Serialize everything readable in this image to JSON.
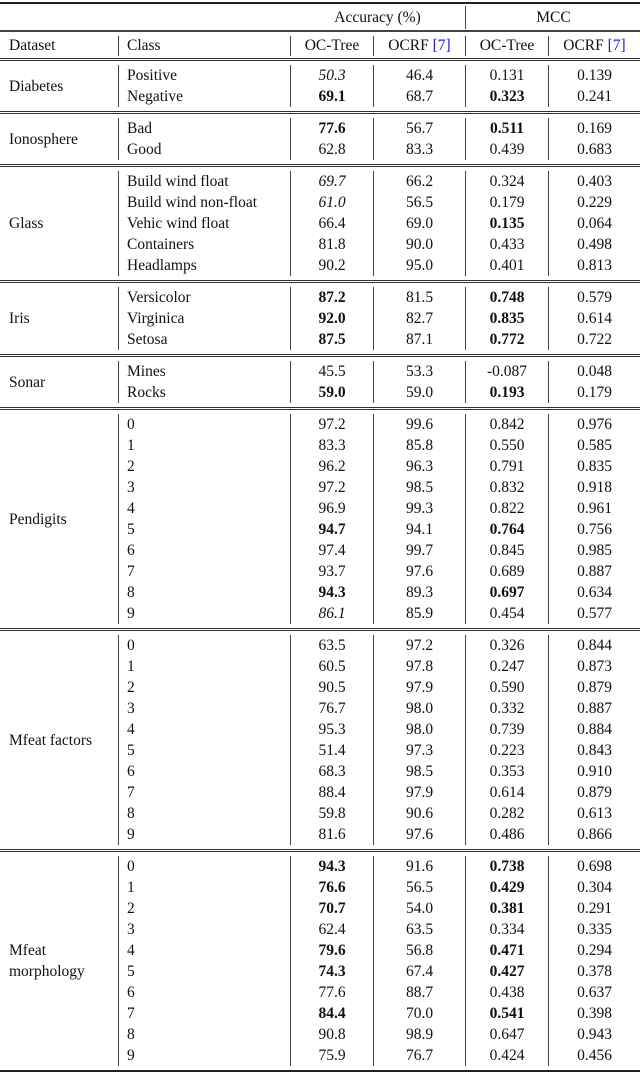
{
  "header": {
    "group_accuracy": "Accuracy (%)",
    "group_mcc": "MCC",
    "col_dataset": "Dataset",
    "col_class": "Class",
    "col_oc_tree": "OC-Tree",
    "col_ocrf": "OCRF",
    "ocrf_ref": "[7]",
    "ref_color": "#1a1aee"
  },
  "groups": [
    {
      "dataset": "Diabetes",
      "rows": [
        {
          "cls": "Positive",
          "acc_oc": {
            "v": "50.3",
            "s": "italic"
          },
          "acc_ocrf": {
            "v": "46.4"
          },
          "mcc_oc": {
            "v": "0.131"
          },
          "mcc_ocrf": {
            "v": "0.139"
          }
        },
        {
          "cls": "Negative",
          "acc_oc": {
            "v": "69.1",
            "s": "bold"
          },
          "acc_ocrf": {
            "v": "68.7"
          },
          "mcc_oc": {
            "v": "0.323",
            "s": "bold"
          },
          "mcc_ocrf": {
            "v": "0.241"
          }
        }
      ]
    },
    {
      "dataset": "Ionosphere",
      "rows": [
        {
          "cls": "Bad",
          "acc_oc": {
            "v": "77.6",
            "s": "bold"
          },
          "acc_ocrf": {
            "v": "56.7"
          },
          "mcc_oc": {
            "v": "0.511",
            "s": "bold"
          },
          "mcc_ocrf": {
            "v": "0.169"
          }
        },
        {
          "cls": "Good",
          "acc_oc": {
            "v": "62.8"
          },
          "acc_ocrf": {
            "v": "83.3"
          },
          "mcc_oc": {
            "v": "0.439"
          },
          "mcc_ocrf": {
            "v": "0.683"
          }
        }
      ]
    },
    {
      "dataset": "Glass",
      "rows": [
        {
          "cls": "Build wind float",
          "acc_oc": {
            "v": "69.7",
            "s": "italic"
          },
          "acc_ocrf": {
            "v": "66.2"
          },
          "mcc_oc": {
            "v": "0.324"
          },
          "mcc_ocrf": {
            "v": "0.403"
          }
        },
        {
          "cls": "Build wind non-float",
          "acc_oc": {
            "v": "61.0",
            "s": "italic"
          },
          "acc_ocrf": {
            "v": "56.5"
          },
          "mcc_oc": {
            "v": "0.179"
          },
          "mcc_ocrf": {
            "v": "0.229"
          }
        },
        {
          "cls": "Vehic wind float",
          "acc_oc": {
            "v": "66.4"
          },
          "acc_ocrf": {
            "v": "69.0"
          },
          "mcc_oc": {
            "v": "0.135",
            "s": "bold"
          },
          "mcc_ocrf": {
            "v": "0.064"
          }
        },
        {
          "cls": "Containers",
          "acc_oc": {
            "v": "81.8"
          },
          "acc_ocrf": {
            "v": "90.0"
          },
          "mcc_oc": {
            "v": "0.433"
          },
          "mcc_ocrf": {
            "v": "0.498"
          }
        },
        {
          "cls": "Headlamps",
          "acc_oc": {
            "v": "90.2"
          },
          "acc_ocrf": {
            "v": "95.0"
          },
          "mcc_oc": {
            "v": "0.401"
          },
          "mcc_ocrf": {
            "v": "0.813"
          }
        }
      ]
    },
    {
      "dataset": "Iris",
      "rows": [
        {
          "cls": "Versicolor",
          "acc_oc": {
            "v": "87.2",
            "s": "bold"
          },
          "acc_ocrf": {
            "v": "81.5"
          },
          "mcc_oc": {
            "v": "0.748",
            "s": "bold"
          },
          "mcc_ocrf": {
            "v": "0.579"
          }
        },
        {
          "cls": "Virginica",
          "acc_oc": {
            "v": "92.0",
            "s": "bold"
          },
          "acc_ocrf": {
            "v": "82.7"
          },
          "mcc_oc": {
            "v": "0.835",
            "s": "bold"
          },
          "mcc_ocrf": {
            "v": "0.614"
          }
        },
        {
          "cls": "Setosa",
          "acc_oc": {
            "v": "87.5",
            "s": "bold"
          },
          "acc_ocrf": {
            "v": "87.1"
          },
          "mcc_oc": {
            "v": "0.772",
            "s": "bold"
          },
          "mcc_ocrf": {
            "v": "0.722"
          }
        }
      ]
    },
    {
      "dataset": "Sonar",
      "rows": [
        {
          "cls": "Mines",
          "acc_oc": {
            "v": "45.5"
          },
          "acc_ocrf": {
            "v": "53.3"
          },
          "mcc_oc": {
            "v": "-0.087"
          },
          "mcc_ocrf": {
            "v": "0.048"
          }
        },
        {
          "cls": "Rocks",
          "acc_oc": {
            "v": "59.0",
            "s": "bold"
          },
          "acc_ocrf": {
            "v": "59.0"
          },
          "mcc_oc": {
            "v": "0.193",
            "s": "bold"
          },
          "mcc_ocrf": {
            "v": "0.179"
          }
        }
      ]
    },
    {
      "dataset": "Pendigits",
      "rows": [
        {
          "cls": "0",
          "acc_oc": {
            "v": "97.2"
          },
          "acc_ocrf": {
            "v": "99.6"
          },
          "mcc_oc": {
            "v": "0.842"
          },
          "mcc_ocrf": {
            "v": "0.976"
          }
        },
        {
          "cls": "1",
          "acc_oc": {
            "v": "83.3"
          },
          "acc_ocrf": {
            "v": "85.8"
          },
          "mcc_oc": {
            "v": "0.550"
          },
          "mcc_ocrf": {
            "v": "0.585"
          }
        },
        {
          "cls": "2",
          "acc_oc": {
            "v": "96.2"
          },
          "acc_ocrf": {
            "v": "96.3"
          },
          "mcc_oc": {
            "v": "0.791"
          },
          "mcc_ocrf": {
            "v": "0.835"
          }
        },
        {
          "cls": "3",
          "acc_oc": {
            "v": "97.2"
          },
          "acc_ocrf": {
            "v": "98.5"
          },
          "mcc_oc": {
            "v": "0.832"
          },
          "mcc_ocrf": {
            "v": "0.918"
          }
        },
        {
          "cls": "4",
          "acc_oc": {
            "v": "96.9"
          },
          "acc_ocrf": {
            "v": "99.3"
          },
          "mcc_oc": {
            "v": "0.822"
          },
          "mcc_ocrf": {
            "v": "0.961"
          }
        },
        {
          "cls": "5",
          "acc_oc": {
            "v": "94.7",
            "s": "bold"
          },
          "acc_ocrf": {
            "v": "94.1"
          },
          "mcc_oc": {
            "v": "0.764",
            "s": "bold"
          },
          "mcc_ocrf": {
            "v": "0.756"
          }
        },
        {
          "cls": "6",
          "acc_oc": {
            "v": "97.4"
          },
          "acc_ocrf": {
            "v": "99.7"
          },
          "mcc_oc": {
            "v": "0.845"
          },
          "mcc_ocrf": {
            "v": "0.985"
          }
        },
        {
          "cls": "7",
          "acc_oc": {
            "v": "93.7"
          },
          "acc_ocrf": {
            "v": "97.6"
          },
          "mcc_oc": {
            "v": "0.689"
          },
          "mcc_ocrf": {
            "v": "0.887"
          }
        },
        {
          "cls": "8",
          "acc_oc": {
            "v": "94.3",
            "s": "bold"
          },
          "acc_ocrf": {
            "v": "89.3"
          },
          "mcc_oc": {
            "v": "0.697",
            "s": "bold"
          },
          "mcc_ocrf": {
            "v": "0.634"
          }
        },
        {
          "cls": "9",
          "acc_oc": {
            "v": "86.1",
            "s": "italic"
          },
          "acc_ocrf": {
            "v": "85.9"
          },
          "mcc_oc": {
            "v": "0.454"
          },
          "mcc_ocrf": {
            "v": "0.577"
          }
        }
      ]
    },
    {
      "dataset": "Mfeat factors",
      "rows": [
        {
          "cls": "0",
          "acc_oc": {
            "v": "63.5"
          },
          "acc_ocrf": {
            "v": "97.2"
          },
          "mcc_oc": {
            "v": "0.326"
          },
          "mcc_ocrf": {
            "v": "0.844"
          }
        },
        {
          "cls": "1",
          "acc_oc": {
            "v": "60.5"
          },
          "acc_ocrf": {
            "v": "97.8"
          },
          "mcc_oc": {
            "v": "0.247"
          },
          "mcc_ocrf": {
            "v": "0.873"
          }
        },
        {
          "cls": "2",
          "acc_oc": {
            "v": "90.5"
          },
          "acc_ocrf": {
            "v": "97.9"
          },
          "mcc_oc": {
            "v": "0.590"
          },
          "mcc_ocrf": {
            "v": "0.879"
          }
        },
        {
          "cls": "3",
          "acc_oc": {
            "v": "76.7"
          },
          "acc_ocrf": {
            "v": "98.0"
          },
          "mcc_oc": {
            "v": "0.332"
          },
          "mcc_ocrf": {
            "v": "0.887"
          }
        },
        {
          "cls": "4",
          "acc_oc": {
            "v": "95.3"
          },
          "acc_ocrf": {
            "v": "98.0"
          },
          "mcc_oc": {
            "v": "0.739"
          },
          "mcc_ocrf": {
            "v": "0.884"
          }
        },
        {
          "cls": "5",
          "acc_oc": {
            "v": "51.4"
          },
          "acc_ocrf": {
            "v": "97.3"
          },
          "mcc_oc": {
            "v": "0.223"
          },
          "mcc_ocrf": {
            "v": "0.843"
          }
        },
        {
          "cls": "6",
          "acc_oc": {
            "v": "68.3"
          },
          "acc_ocrf": {
            "v": "98.5"
          },
          "mcc_oc": {
            "v": "0.353"
          },
          "mcc_ocrf": {
            "v": "0.910"
          }
        },
        {
          "cls": "7",
          "acc_oc": {
            "v": "88.4"
          },
          "acc_ocrf": {
            "v": "97.9"
          },
          "mcc_oc": {
            "v": "0.614"
          },
          "mcc_ocrf": {
            "v": "0.879"
          }
        },
        {
          "cls": "8",
          "acc_oc": {
            "v": "59.8"
          },
          "acc_ocrf": {
            "v": "90.6"
          },
          "mcc_oc": {
            "v": "0.282"
          },
          "mcc_ocrf": {
            "v": "0.613"
          }
        },
        {
          "cls": "9",
          "acc_oc": {
            "v": "81.6"
          },
          "acc_ocrf": {
            "v": "97.6"
          },
          "mcc_oc": {
            "v": "0.486"
          },
          "mcc_ocrf": {
            "v": "0.866"
          }
        }
      ]
    },
    {
      "dataset": "Mfeat morphology",
      "rows": [
        {
          "cls": "0",
          "acc_oc": {
            "v": "94.3",
            "s": "bold"
          },
          "acc_ocrf": {
            "v": "91.6"
          },
          "mcc_oc": {
            "v": "0.738",
            "s": "bold"
          },
          "mcc_ocrf": {
            "v": "0.698"
          }
        },
        {
          "cls": "1",
          "acc_oc": {
            "v": "76.6",
            "s": "bold"
          },
          "acc_ocrf": {
            "v": "56.5"
          },
          "mcc_oc": {
            "v": "0.429",
            "s": "bold"
          },
          "mcc_ocrf": {
            "v": "0.304"
          }
        },
        {
          "cls": "2",
          "acc_oc": {
            "v": "70.7",
            "s": "bold"
          },
          "acc_ocrf": {
            "v": "54.0"
          },
          "mcc_oc": {
            "v": "0.381",
            "s": "bold"
          },
          "mcc_ocrf": {
            "v": "0.291"
          }
        },
        {
          "cls": "3",
          "acc_oc": {
            "v": "62.4"
          },
          "acc_ocrf": {
            "v": "63.5"
          },
          "mcc_oc": {
            "v": "0.334"
          },
          "mcc_ocrf": {
            "v": "0.335"
          }
        },
        {
          "cls": "4",
          "acc_oc": {
            "v": "79.6",
            "s": "bold"
          },
          "acc_ocrf": {
            "v": "56.8"
          },
          "mcc_oc": {
            "v": "0.471",
            "s": "bold"
          },
          "mcc_ocrf": {
            "v": "0.294"
          }
        },
        {
          "cls": "5",
          "acc_oc": {
            "v": "74.3",
            "s": "bold"
          },
          "acc_ocrf": {
            "v": "67.4"
          },
          "mcc_oc": {
            "v": "0.427",
            "s": "bold"
          },
          "mcc_ocrf": {
            "v": "0.378"
          }
        },
        {
          "cls": "6",
          "acc_oc": {
            "v": "77.6"
          },
          "acc_ocrf": {
            "v": "88.7"
          },
          "mcc_oc": {
            "v": "0.438"
          },
          "mcc_ocrf": {
            "v": "0.637"
          }
        },
        {
          "cls": "7",
          "acc_oc": {
            "v": "84.4",
            "s": "bold"
          },
          "acc_ocrf": {
            "v": "70.0"
          },
          "mcc_oc": {
            "v": "0.541",
            "s": "bold"
          },
          "mcc_ocrf": {
            "v": "0.398"
          }
        },
        {
          "cls": "8",
          "acc_oc": {
            "v": "90.8"
          },
          "acc_ocrf": {
            "v": "98.9"
          },
          "mcc_oc": {
            "v": "0.647"
          },
          "mcc_ocrf": {
            "v": "0.943"
          }
        },
        {
          "cls": "9",
          "acc_oc": {
            "v": "75.9"
          },
          "acc_ocrf": {
            "v": "76.7"
          },
          "mcc_oc": {
            "v": "0.424"
          },
          "mcc_ocrf": {
            "v": "0.456"
          }
        }
      ]
    }
  ]
}
